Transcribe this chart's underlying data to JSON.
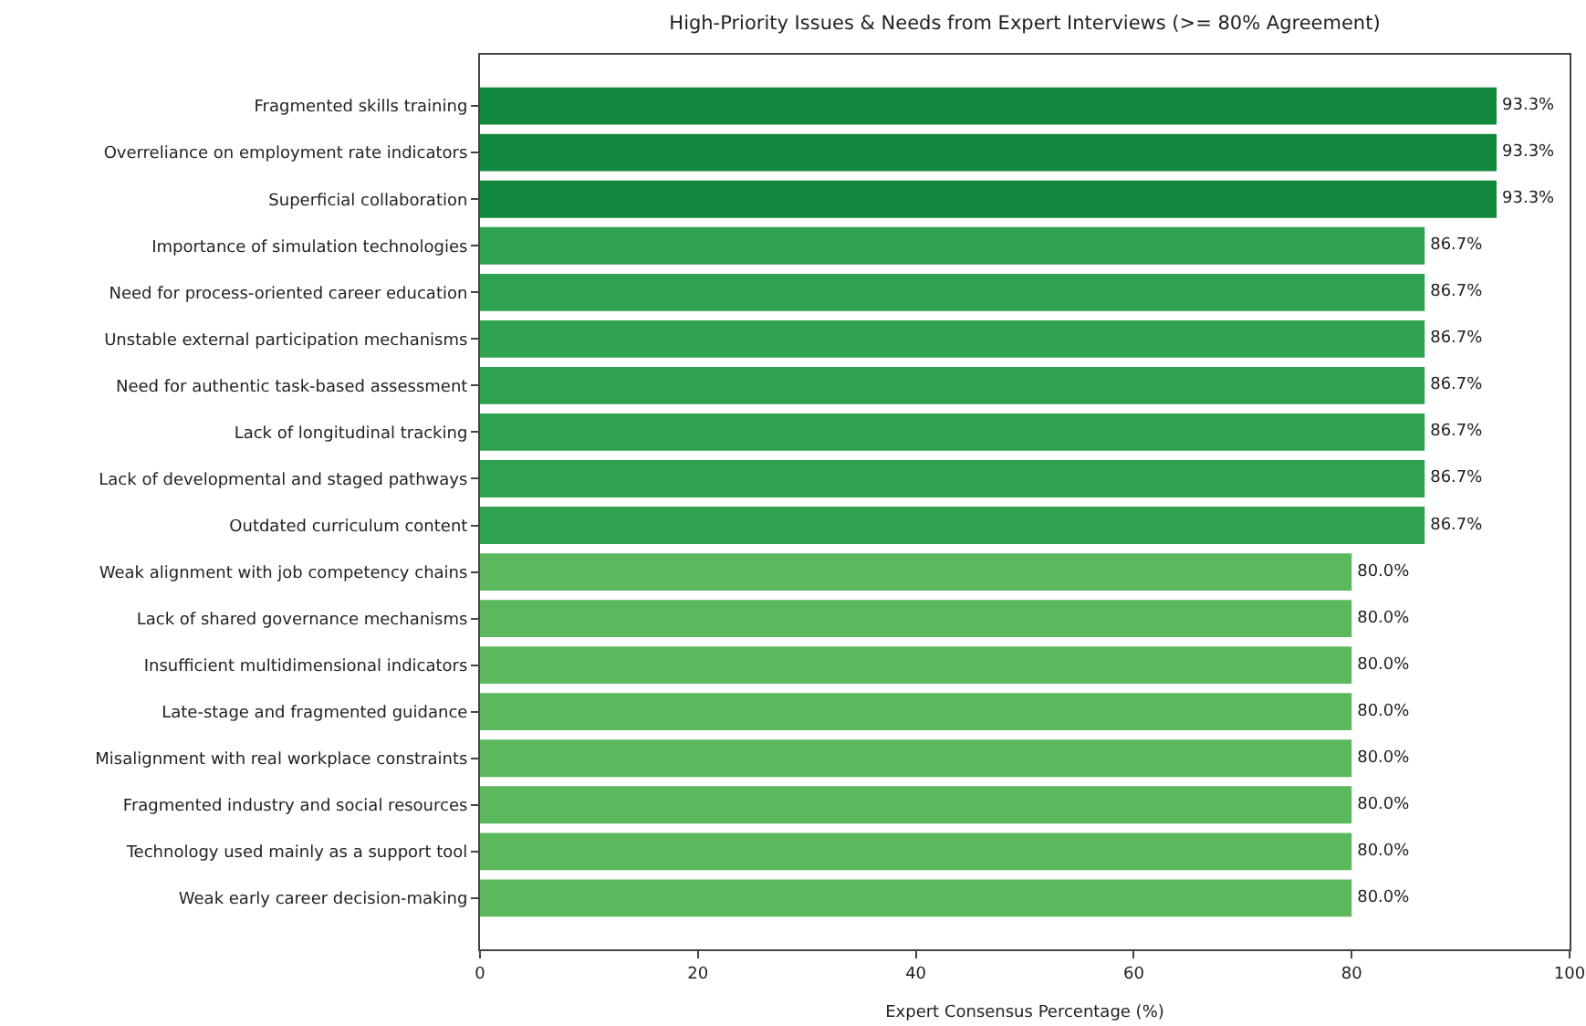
{
  "chart_data": {
    "type": "bar",
    "orientation": "horizontal",
    "title": "High-Priority Issues & Needs from Expert Interviews (>= 80% Agreement)",
    "xlabel": "Expert Consensus Percentage (%)",
    "categories": [
      "Fragmented skills training",
      "Overreliance on employment rate indicators",
      "Superficial collaboration",
      "Importance of simulation technologies",
      "Need for process-oriented career education",
      "Unstable external participation mechanisms",
      "Need for authentic task-based assessment",
      "Lack of longitudinal tracking",
      "Lack of developmental and staged pathways",
      "Outdated curriculum content",
      "Weak alignment with job competency chains",
      "Lack of shared governance mechanisms",
      "Insufficient multidimensional indicators",
      "Late-stage and fragmented guidance",
      "Misalignment with real workplace constraints",
      "Fragmented industry and social resources",
      "Technology used mainly as a support tool",
      "Weak early career decision-making"
    ],
    "values": [
      93.3,
      93.3,
      93.3,
      86.7,
      86.7,
      86.7,
      86.7,
      86.7,
      86.7,
      86.7,
      80.0,
      80.0,
      80.0,
      80.0,
      80.0,
      80.0,
      80.0,
      80.0
    ],
    "value_labels": [
      "93.3%",
      "93.3%",
      "93.3%",
      "86.7%",
      "86.7%",
      "86.7%",
      "86.7%",
      "86.7%",
      "86.7%",
      "86.7%",
      "80.0%",
      "80.0%",
      "80.0%",
      "80.0%",
      "80.0%",
      "80.0%",
      "80.0%",
      "80.0%"
    ],
    "colors": [
      "#12883f",
      "#12883f",
      "#12883f",
      "#2ea24e",
      "#2ea24e",
      "#2ea24e",
      "#2ea24e",
      "#2ea24e",
      "#2ea24e",
      "#2ea24e",
      "#5cb85c",
      "#5cb85c",
      "#5cb85c",
      "#5cb85c",
      "#5cb85c",
      "#5cb85c",
      "#5cb85c",
      "#5cb85c"
    ],
    "xlim": [
      0,
      100
    ],
    "xticks": [
      0,
      20,
      40,
      60,
      80,
      100
    ],
    "grid": false,
    "legend": false
  }
}
